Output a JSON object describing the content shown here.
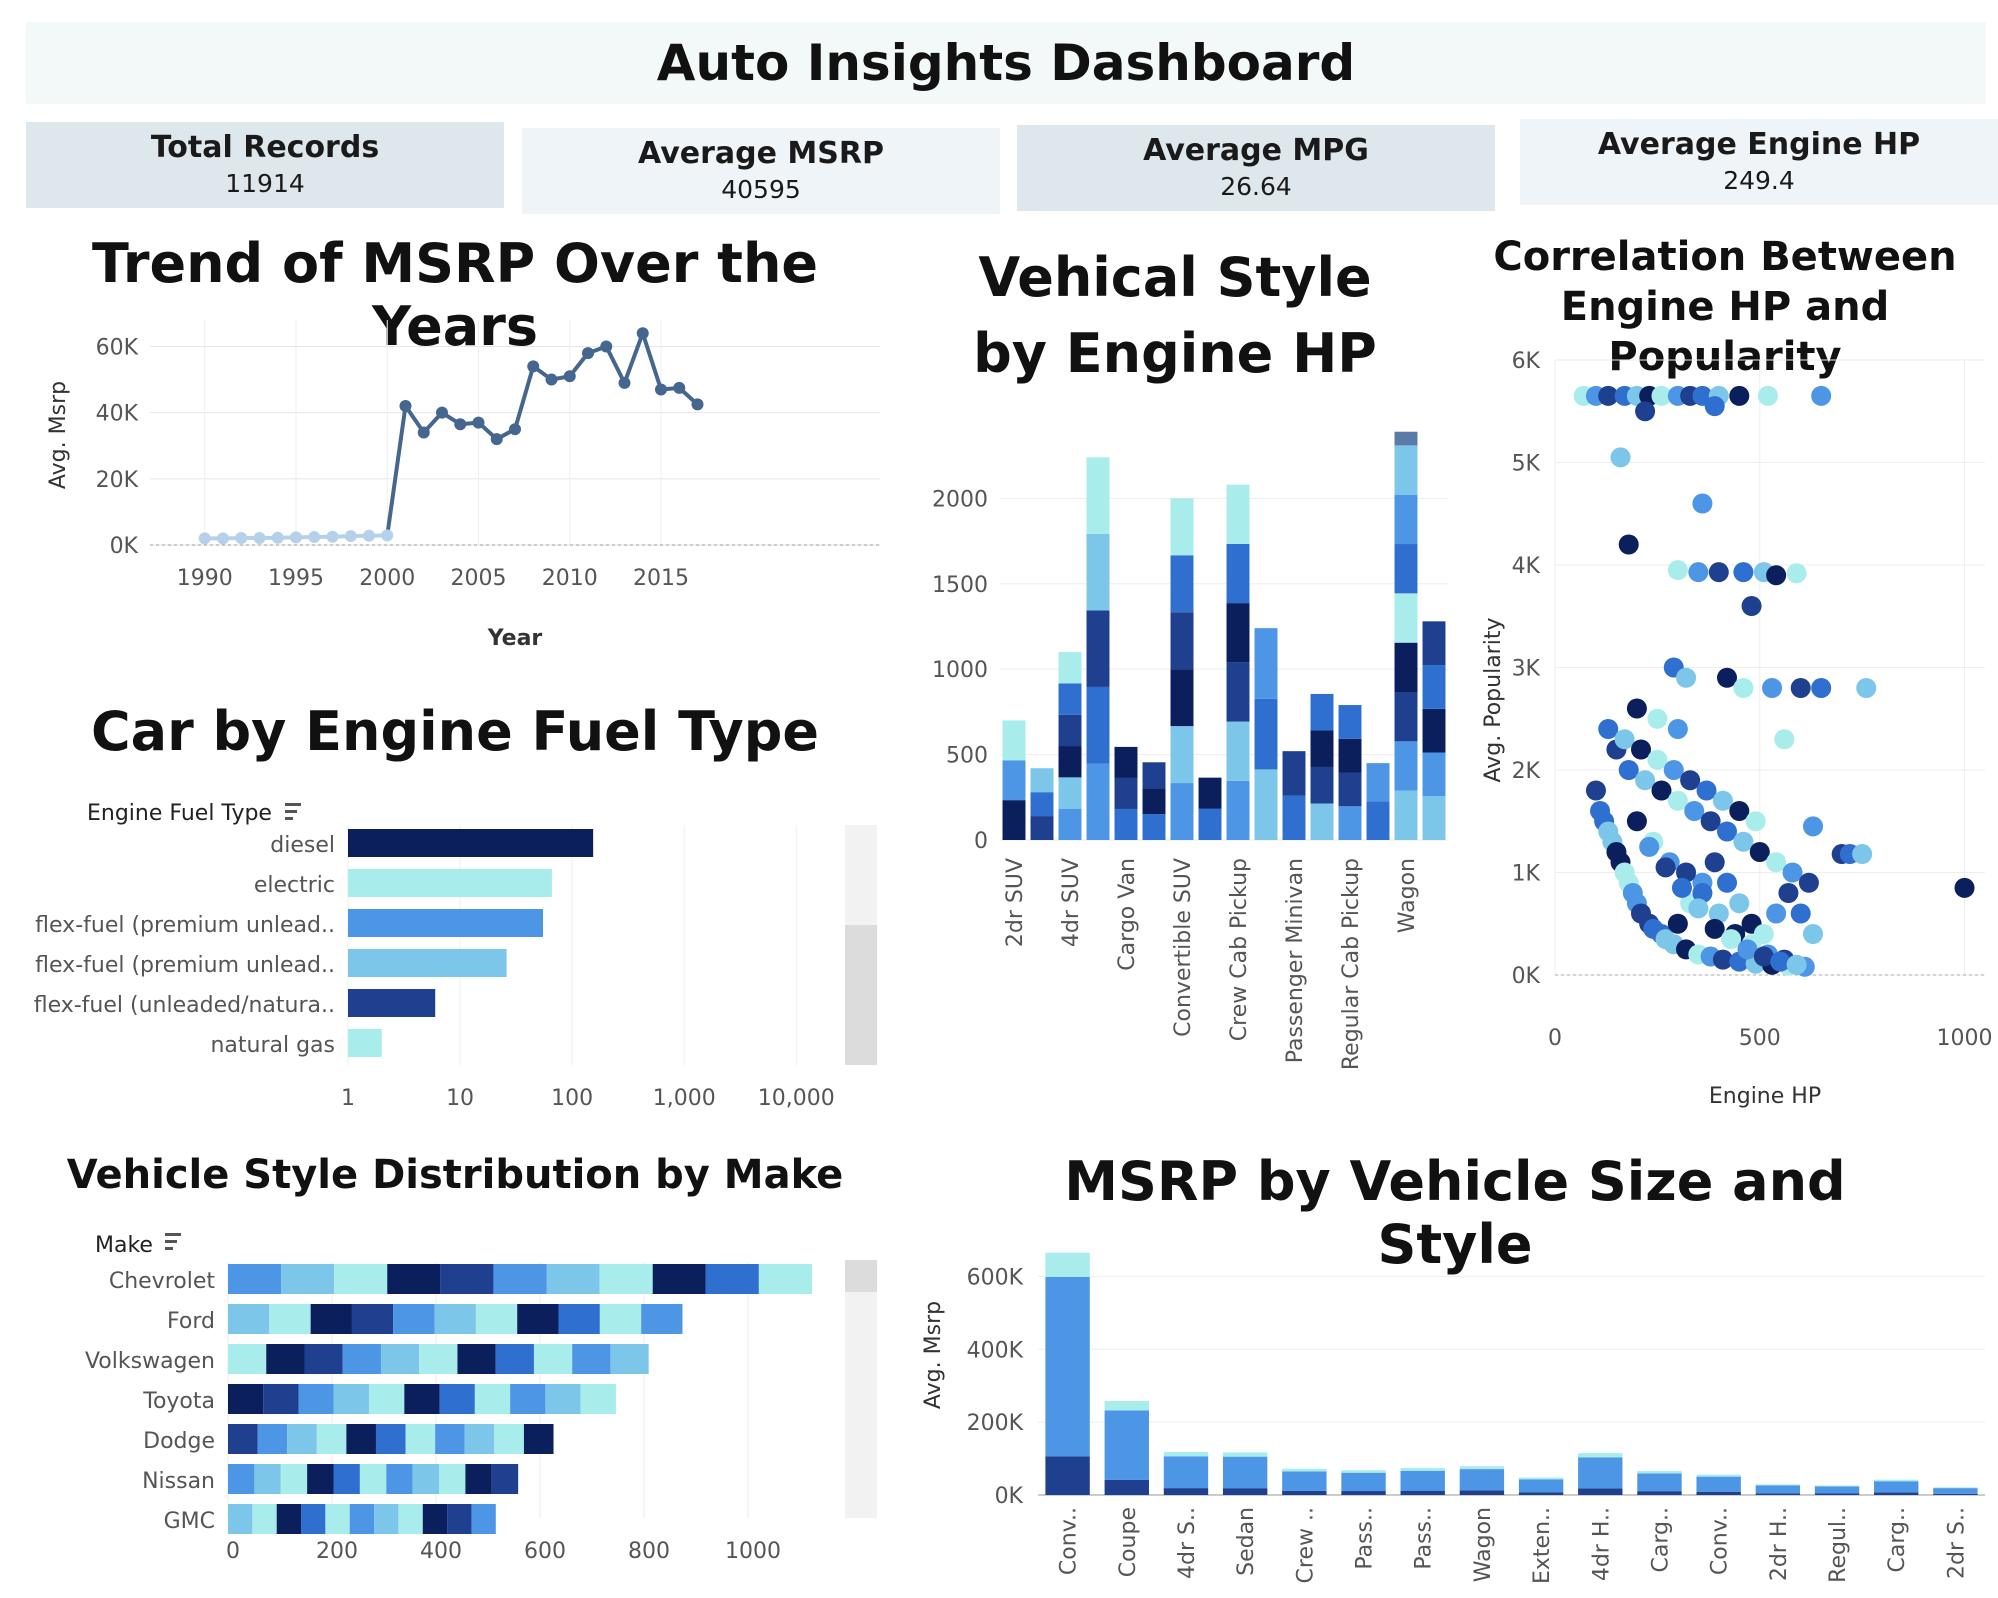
{
  "dashboard": {
    "title": "Auto Insights Dashboard"
  },
  "kpis": [
    {
      "label": "Total Records",
      "value": "11914"
    },
    {
      "label": "Average MSRP",
      "value": "40595"
    },
    {
      "label": "Average MPG",
      "value": "26.64"
    },
    {
      "label": "Average Engine HP",
      "value": "249.4"
    }
  ],
  "colors": {
    "navy": "#0b1f5c",
    "dark_blue": "#1f3f8f",
    "mid_blue": "#2e6fcf",
    "blue": "#4d96e6",
    "light_blue": "#7cc6ea",
    "aqua": "#a8ecec",
    "slate": "#5a7aa8",
    "line": "#45668e"
  },
  "chart_data": [
    {
      "id": "msrp_trend",
      "type": "line",
      "title": "Trend of MSRP Over the Years",
      "xlabel": "Year",
      "ylabel": "Avg. Msrp",
      "x": [
        1990,
        1991,
        1992,
        1993,
        1994,
        1995,
        1996,
        1997,
        1998,
        1999,
        2000,
        2001,
        2002,
        2003,
        2004,
        2005,
        2006,
        2007,
        2008,
        2009,
        2010,
        2011,
        2012,
        2013,
        2014,
        2015,
        2016,
        2017
      ],
      "y": [
        2000,
        2000,
        2100,
        2100,
        2200,
        2300,
        2400,
        2500,
        2700,
        2800,
        2900,
        42000,
        34000,
        40000,
        36500,
        37000,
        32000,
        35000,
        54000,
        50000,
        51000,
        58000,
        60000,
        49000,
        64000,
        47000,
        47500,
        42500
      ],
      "xticks": [
        "1990",
        "1995",
        "2000",
        "2005",
        "2010",
        "2015"
      ],
      "yticks": [
        "0K",
        "20K",
        "40K",
        "60K"
      ],
      "ylim": [
        0,
        68000
      ],
      "grid": true
    },
    {
      "id": "fuel_type",
      "type": "bar",
      "orientation": "horizontal",
      "scale": "log",
      "title": "Car by Engine Fuel Type",
      "ylabel": "Engine Fuel Type",
      "categories": [
        "diesel",
        "electric",
        "flex-fuel (premium unlead..",
        "flex-fuel (premium unlead..",
        "flex-fuel (unleaded/natura..",
        "natural gas"
      ],
      "values": [
        154,
        66,
        55,
        26,
        6,
        2
      ],
      "colors": [
        "#0b1f5c",
        "#a8ecec",
        "#4d96e6",
        "#7cc6ea",
        "#1f3f8f",
        "#a8ecec"
      ],
      "xticks": [
        "1",
        "10",
        "100",
        "1,000",
        "10,000"
      ],
      "xlim": [
        1,
        20000
      ]
    },
    {
      "id": "style_by_hp",
      "type": "bar",
      "stacked": true,
      "title": "Vehical Style by Engine HP",
      "categories": [
        "2dr SUV",
        "",
        "4dr SUV",
        "",
        "Cargo Van",
        "",
        "Convertible SUV",
        "",
        "Crew Cab Pickup",
        "",
        "Passenger Minivan",
        "",
        "Regular Cab Pickup",
        "",
        "Wagon",
        ""
      ],
      "totals": [
        700,
        420,
        1100,
        2240,
        545,
        455,
        2000,
        365,
        2080,
        1240,
        520,
        855,
        790,
        450,
        2310,
        1280
      ],
      "yticks": [
        "0",
        "500",
        "1000",
        "1500",
        "2000"
      ],
      "ylim": [
        0,
        2400
      ]
    },
    {
      "id": "hp_popularity",
      "type": "scatter",
      "title": "Correlation Between Engine HP and Popularity",
      "xlabel": "Engine HP",
      "ylabel": "Avg. Popularity",
      "xticks": [
        "0",
        "500",
        "1000"
      ],
      "yticks": [
        "0K",
        "1K",
        "2K",
        "3K",
        "4K",
        "5K",
        "6K"
      ],
      "xlim": [
        0,
        1050
      ],
      "ylim": [
        0,
        6000
      ],
      "points": [
        [
          70,
          5650
        ],
        [
          100,
          5650
        ],
        [
          130,
          5650
        ],
        [
          170,
          5650
        ],
        [
          200,
          5650
        ],
        [
          230,
          5650
        ],
        [
          260,
          5650
        ],
        [
          300,
          5650
        ],
        [
          330,
          5650
        ],
        [
          360,
          5650
        ],
        [
          400,
          5650
        ],
        [
          450,
          5650
        ],
        [
          520,
          5650
        ],
        [
          650,
          5650
        ],
        [
          220,
          5500
        ],
        [
          390,
          5550
        ],
        [
          160,
          5050
        ],
        [
          180,
          4200
        ],
        [
          300,
          3950
        ],
        [
          350,
          3930
        ],
        [
          400,
          3930
        ],
        [
          460,
          3930
        ],
        [
          510,
          3930
        ],
        [
          540,
          3900
        ],
        [
          590,
          3920
        ],
        [
          360,
          4600
        ],
        [
          480,
          3600
        ],
        [
          290,
          3000
        ],
        [
          320,
          2900
        ],
        [
          420,
          2900
        ],
        [
          460,
          2800
        ],
        [
          530,
          2800
        ],
        [
          600,
          2800
        ],
        [
          650,
          2800
        ],
        [
          760,
          2800
        ],
        [
          1000,
          850
        ],
        [
          560,
          2300
        ],
        [
          630,
          1450
        ],
        [
          700,
          1180
        ],
        [
          720,
          1180
        ],
        [
          750,
          1180
        ],
        [
          200,
          2600
        ],
        [
          250,
          2500
        ],
        [
          300,
          2400
        ],
        [
          150,
          2200
        ],
        [
          180,
          2000
        ],
        [
          220,
          1900
        ],
        [
          260,
          1800
        ],
        [
          300,
          1700
        ],
        [
          340,
          1600
        ],
        [
          380,
          1500
        ],
        [
          420,
          1400
        ],
        [
          460,
          1300
        ],
        [
          500,
          1200
        ],
        [
          540,
          1100
        ],
        [
          580,
          1000
        ],
        [
          620,
          900
        ],
        [
          120,
          1500
        ],
        [
          140,
          1300
        ],
        [
          160,
          1100
        ],
        [
          180,
          900
        ],
        [
          200,
          700
        ],
        [
          230,
          500
        ],
        [
          260,
          400
        ],
        [
          290,
          300
        ],
        [
          320,
          250
        ],
        [
          350,
          200
        ],
        [
          380,
          180
        ],
        [
          410,
          150
        ],
        [
          450,
          130
        ],
        [
          490,
          110
        ],
        [
          530,
          100
        ],
        [
          570,
          90
        ],
        [
          610,
          80
        ],
        [
          100,
          1800
        ],
        [
          110,
          1600
        ],
        [
          130,
          1400
        ],
        [
          150,
          1200
        ],
        [
          170,
          1000
        ],
        [
          190,
          800
        ],
        [
          210,
          600
        ],
        [
          240,
          450
        ],
        [
          270,
          350
        ],
        [
          300,
          500
        ],
        [
          330,
          700
        ],
        [
          360,
          900
        ],
        [
          390,
          1100
        ],
        [
          420,
          900
        ],
        [
          450,
          700
        ],
        [
          480,
          500
        ],
        [
          510,
          400
        ],
        [
          540,
          600
        ],
        [
          570,
          800
        ],
        [
          600,
          600
        ],
        [
          630,
          400
        ],
        [
          200,
          1500
        ],
        [
          240,
          1300
        ],
        [
          280,
          1100
        ],
        [
          320,
          1000
        ],
        [
          360,
          800
        ],
        [
          400,
          600
        ],
        [
          440,
          400
        ],
        [
          480,
          300
        ],
        [
          520,
          200
        ],
        [
          560,
          150
        ],
        [
          130,
          2400
        ],
        [
          170,
          2300
        ],
        [
          210,
          2200
        ],
        [
          250,
          2100
        ],
        [
          290,
          2000
        ],
        [
          330,
          1900
        ],
        [
          370,
          1800
        ],
        [
          410,
          1700
        ],
        [
          450,
          1600
        ],
        [
          490,
          1500
        ],
        [
          230,
          1250
        ],
        [
          270,
          1050
        ],
        [
          310,
          850
        ],
        [
          350,
          650
        ],
        [
          390,
          450
        ],
        [
          430,
          350
        ],
        [
          470,
          250
        ],
        [
          510,
          180
        ],
        [
          550,
          130
        ],
        [
          590,
          100
        ]
      ]
    },
    {
      "id": "style_by_make",
      "type": "bar",
      "orientation": "horizontal",
      "stacked": true,
      "title": "Vehicle Style Distribution by Make",
      "ylabel": "Make",
      "categories": [
        "Chevrolet",
        "Ford",
        "Volkswagen",
        "Toyota",
        "Dodge",
        "Nissan",
        "GMC"
      ],
      "totals": [
        1123,
        874,
        809,
        746,
        626,
        558,
        515
      ],
      "xticks": [
        "0",
        "200",
        "400",
        "600",
        "800",
        "1000"
      ],
      "xlim": [
        0,
        1250
      ]
    },
    {
      "id": "msrp_size_style",
      "type": "bar",
      "stacked": true,
      "title": "MSRP by Vehicle Size and Style",
      "ylabel": "Avg. Msrp",
      "categories": [
        "Conv..",
        "Coupe",
        "4dr S..",
        "Sedan",
        "Crew ..",
        "Pass..",
        "Pass..",
        "Wagon",
        "Exten..",
        "4dr H..",
        "Carg..",
        "Conv..",
        "2dr H..",
        "Regul..",
        "Carg..",
        "2dr S.."
      ],
      "totals": [
        665000,
        258000,
        118000,
        117000,
        72000,
        68000,
        74000,
        79000,
        48000,
        115000,
        66000,
        56000,
        29000,
        26000,
        42000,
        21000
      ],
      "yticks": [
        "0K",
        "200K",
        "400K",
        "600K"
      ],
      "ylim": [
        0,
        700000
      ]
    }
  ]
}
